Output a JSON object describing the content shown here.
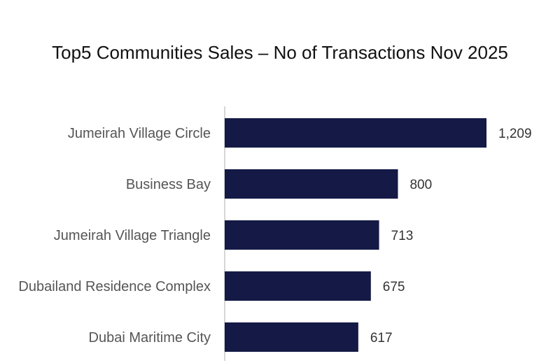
{
  "chart_data": {
    "type": "bar",
    "orientation": "horizontal",
    "title": "Top5 Communities Sales – No of Transactions Nov 2025",
    "categories": [
      "Jumeirah Village Circle",
      "Business Bay",
      "Jumeirah Village Triangle",
      "Dubailand Residence Complex",
      "Dubai Maritime City"
    ],
    "values": [
      1209,
      800,
      713,
      675,
      617
    ],
    "value_labels": [
      "1,209",
      "800",
      "713",
      "675",
      "617"
    ],
    "xlim": [
      0,
      1209
    ],
    "grid": false,
    "legend": "none",
    "bar_color": "#141a45",
    "axis_color": "#c8c8c8"
  }
}
